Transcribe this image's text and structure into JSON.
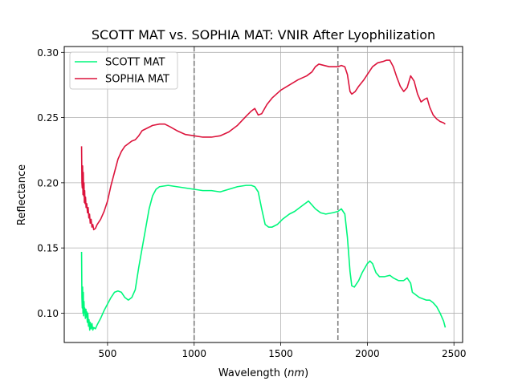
{
  "chart_data": {
    "type": "line",
    "title": "SCOTT MAT vs. SOPHIA MAT: VNIR After Lyophilization",
    "xlabel_main": "Wavelength",
    "xlabel_unit": "nm",
    "ylabel": "Reflectance",
    "xlim": [
      250,
      2550
    ],
    "ylim": [
      0.0775,
      0.3045
    ],
    "x_ticks": [
      500,
      1000,
      1500,
      2000,
      2500
    ],
    "x_tick_labels": [
      "500",
      "1000",
      "1500",
      "2000",
      "2500"
    ],
    "y_ticks": [
      0.1,
      0.15,
      0.2,
      0.25,
      0.3
    ],
    "y_tick_labels": [
      "0.10",
      "0.15",
      "0.20",
      "0.25",
      "0.30"
    ],
    "grid": true,
    "legend_position": "upper-left",
    "vlines": [
      1000,
      1830
    ],
    "series": [
      {
        "name": "SCOTT MAT",
        "color": "#00f77c",
        "points": [
          [
            350,
            0.147
          ],
          [
            352,
            0.112
          ],
          [
            354,
            0.104
          ],
          [
            356,
            0.12
          ],
          [
            358,
            0.1
          ],
          [
            360,
            0.116
          ],
          [
            362,
            0.098
          ],
          [
            364,
            0.109
          ],
          [
            366,
            0.1
          ],
          [
            368,
            0.104
          ],
          [
            370,
            0.102
          ],
          [
            372,
            0.096
          ],
          [
            375,
            0.103
          ],
          [
            378,
            0.097
          ],
          [
            380,
            0.101
          ],
          [
            383,
            0.093
          ],
          [
            386,
            0.1
          ],
          [
            390,
            0.09
          ],
          [
            393,
            0.095
          ],
          [
            397,
            0.087
          ],
          [
            400,
            0.093
          ],
          [
            405,
            0.088
          ],
          [
            410,
            0.092
          ],
          [
            415,
            0.087
          ],
          [
            420,
            0.089
          ],
          [
            430,
            0.088
          ],
          [
            440,
            0.091
          ],
          [
            460,
            0.096
          ],
          [
            480,
            0.102
          ],
          [
            500,
            0.107
          ],
          [
            520,
            0.112
          ],
          [
            540,
            0.116
          ],
          [
            560,
            0.117
          ],
          [
            580,
            0.116
          ],
          [
            600,
            0.112
          ],
          [
            620,
            0.11
          ],
          [
            640,
            0.112
          ],
          [
            660,
            0.118
          ],
          [
            680,
            0.135
          ],
          [
            700,
            0.15
          ],
          [
            720,
            0.165
          ],
          [
            740,
            0.18
          ],
          [
            760,
            0.19
          ],
          [
            780,
            0.195
          ],
          [
            800,
            0.197
          ],
          [
            850,
            0.198
          ],
          [
            900,
            0.197
          ],
          [
            950,
            0.196
          ],
          [
            1000,
            0.195
          ],
          [
            1050,
            0.194
          ],
          [
            1100,
            0.194
          ],
          [
            1150,
            0.193
          ],
          [
            1200,
            0.195
          ],
          [
            1250,
            0.197
          ],
          [
            1300,
            0.198
          ],
          [
            1330,
            0.198
          ],
          [
            1350,
            0.197
          ],
          [
            1370,
            0.193
          ],
          [
            1390,
            0.18
          ],
          [
            1410,
            0.168
          ],
          [
            1430,
            0.166
          ],
          [
            1450,
            0.166
          ],
          [
            1480,
            0.168
          ],
          [
            1510,
            0.172
          ],
          [
            1550,
            0.176
          ],
          [
            1580,
            0.178
          ],
          [
            1620,
            0.182
          ],
          [
            1660,
            0.186
          ],
          [
            1700,
            0.18
          ],
          [
            1730,
            0.177
          ],
          [
            1760,
            0.176
          ],
          [
            1800,
            0.177
          ],
          [
            1830,
            0.178
          ],
          [
            1850,
            0.18
          ],
          [
            1870,
            0.176
          ],
          [
            1885,
            0.158
          ],
          [
            1900,
            0.132
          ],
          [
            1910,
            0.121
          ],
          [
            1925,
            0.12
          ],
          [
            1950,
            0.125
          ],
          [
            1970,
            0.131
          ],
          [
            2000,
            0.138
          ],
          [
            2015,
            0.14
          ],
          [
            2030,
            0.138
          ],
          [
            2050,
            0.131
          ],
          [
            2070,
            0.128
          ],
          [
            2100,
            0.128
          ],
          [
            2130,
            0.129
          ],
          [
            2150,
            0.127
          ],
          [
            2180,
            0.125
          ],
          [
            2210,
            0.125
          ],
          [
            2230,
            0.127
          ],
          [
            2250,
            0.123
          ],
          [
            2260,
            0.116
          ],
          [
            2280,
            0.114
          ],
          [
            2300,
            0.112
          ],
          [
            2320,
            0.111
          ],
          [
            2340,
            0.11
          ],
          [
            2360,
            0.11
          ],
          [
            2380,
            0.108
          ],
          [
            2400,
            0.105
          ],
          [
            2420,
            0.1
          ],
          [
            2440,
            0.094
          ],
          [
            2450,
            0.089
          ]
        ]
      },
      {
        "name": "SOPHIA MAT",
        "color": "#dc143c",
        "points": [
          [
            350,
            0.228
          ],
          [
            352,
            0.2
          ],
          [
            354,
            0.196
          ],
          [
            356,
            0.213
          ],
          [
            358,
            0.191
          ],
          [
            360,
            0.208
          ],
          [
            362,
            0.19
          ],
          [
            364,
            0.2
          ],
          [
            366,
            0.185
          ],
          [
            368,
            0.194
          ],
          [
            370,
            0.184
          ],
          [
            373,
            0.189
          ],
          [
            376,
            0.181
          ],
          [
            380,
            0.184
          ],
          [
            384,
            0.177
          ],
          [
            388,
            0.181
          ],
          [
            392,
            0.173
          ],
          [
            396,
            0.176
          ],
          [
            400,
            0.169
          ],
          [
            405,
            0.172
          ],
          [
            410,
            0.166
          ],
          [
            415,
            0.168
          ],
          [
            420,
            0.164
          ],
          [
            430,
            0.165
          ],
          [
            440,
            0.168
          ],
          [
            460,
            0.172
          ],
          [
            480,
            0.178
          ],
          [
            500,
            0.186
          ],
          [
            520,
            0.198
          ],
          [
            540,
            0.208
          ],
          [
            560,
            0.218
          ],
          [
            580,
            0.224
          ],
          [
            600,
            0.228
          ],
          [
            620,
            0.23
          ],
          [
            640,
            0.232
          ],
          [
            660,
            0.233
          ],
          [
            680,
            0.236
          ],
          [
            700,
            0.24
          ],
          [
            730,
            0.242
          ],
          [
            760,
            0.244
          ],
          [
            800,
            0.245
          ],
          [
            830,
            0.245
          ],
          [
            860,
            0.243
          ],
          [
            900,
            0.24
          ],
          [
            950,
            0.237
          ],
          [
            1000,
            0.236
          ],
          [
            1050,
            0.235
          ],
          [
            1100,
            0.235
          ],
          [
            1150,
            0.236
          ],
          [
            1200,
            0.239
          ],
          [
            1250,
            0.244
          ],
          [
            1300,
            0.251
          ],
          [
            1330,
            0.255
          ],
          [
            1350,
            0.257
          ],
          [
            1370,
            0.252
          ],
          [
            1390,
            0.253
          ],
          [
            1420,
            0.26
          ],
          [
            1450,
            0.265
          ],
          [
            1500,
            0.271
          ],
          [
            1550,
            0.275
          ],
          [
            1600,
            0.279
          ],
          [
            1650,
            0.282
          ],
          [
            1680,
            0.285
          ],
          [
            1700,
            0.289
          ],
          [
            1720,
            0.291
          ],
          [
            1750,
            0.29
          ],
          [
            1780,
            0.289
          ],
          [
            1800,
            0.289
          ],
          [
            1830,
            0.289
          ],
          [
            1850,
            0.29
          ],
          [
            1870,
            0.289
          ],
          [
            1885,
            0.283
          ],
          [
            1900,
            0.27
          ],
          [
            1910,
            0.268
          ],
          [
            1930,
            0.27
          ],
          [
            1950,
            0.274
          ],
          [
            1980,
            0.279
          ],
          [
            2000,
            0.283
          ],
          [
            2030,
            0.289
          ],
          [
            2060,
            0.292
          ],
          [
            2090,
            0.293
          ],
          [
            2110,
            0.294
          ],
          [
            2130,
            0.294
          ],
          [
            2150,
            0.289
          ],
          [
            2170,
            0.281
          ],
          [
            2190,
            0.274
          ],
          [
            2210,
            0.27
          ],
          [
            2230,
            0.273
          ],
          [
            2250,
            0.282
          ],
          [
            2270,
            0.278
          ],
          [
            2290,
            0.268
          ],
          [
            2310,
            0.262
          ],
          [
            2330,
            0.264
          ],
          [
            2345,
            0.265
          ],
          [
            2360,
            0.258
          ],
          [
            2380,
            0.252
          ],
          [
            2400,
            0.249
          ],
          [
            2420,
            0.247
          ],
          [
            2440,
            0.246
          ],
          [
            2450,
            0.245
          ]
        ]
      }
    ]
  }
}
